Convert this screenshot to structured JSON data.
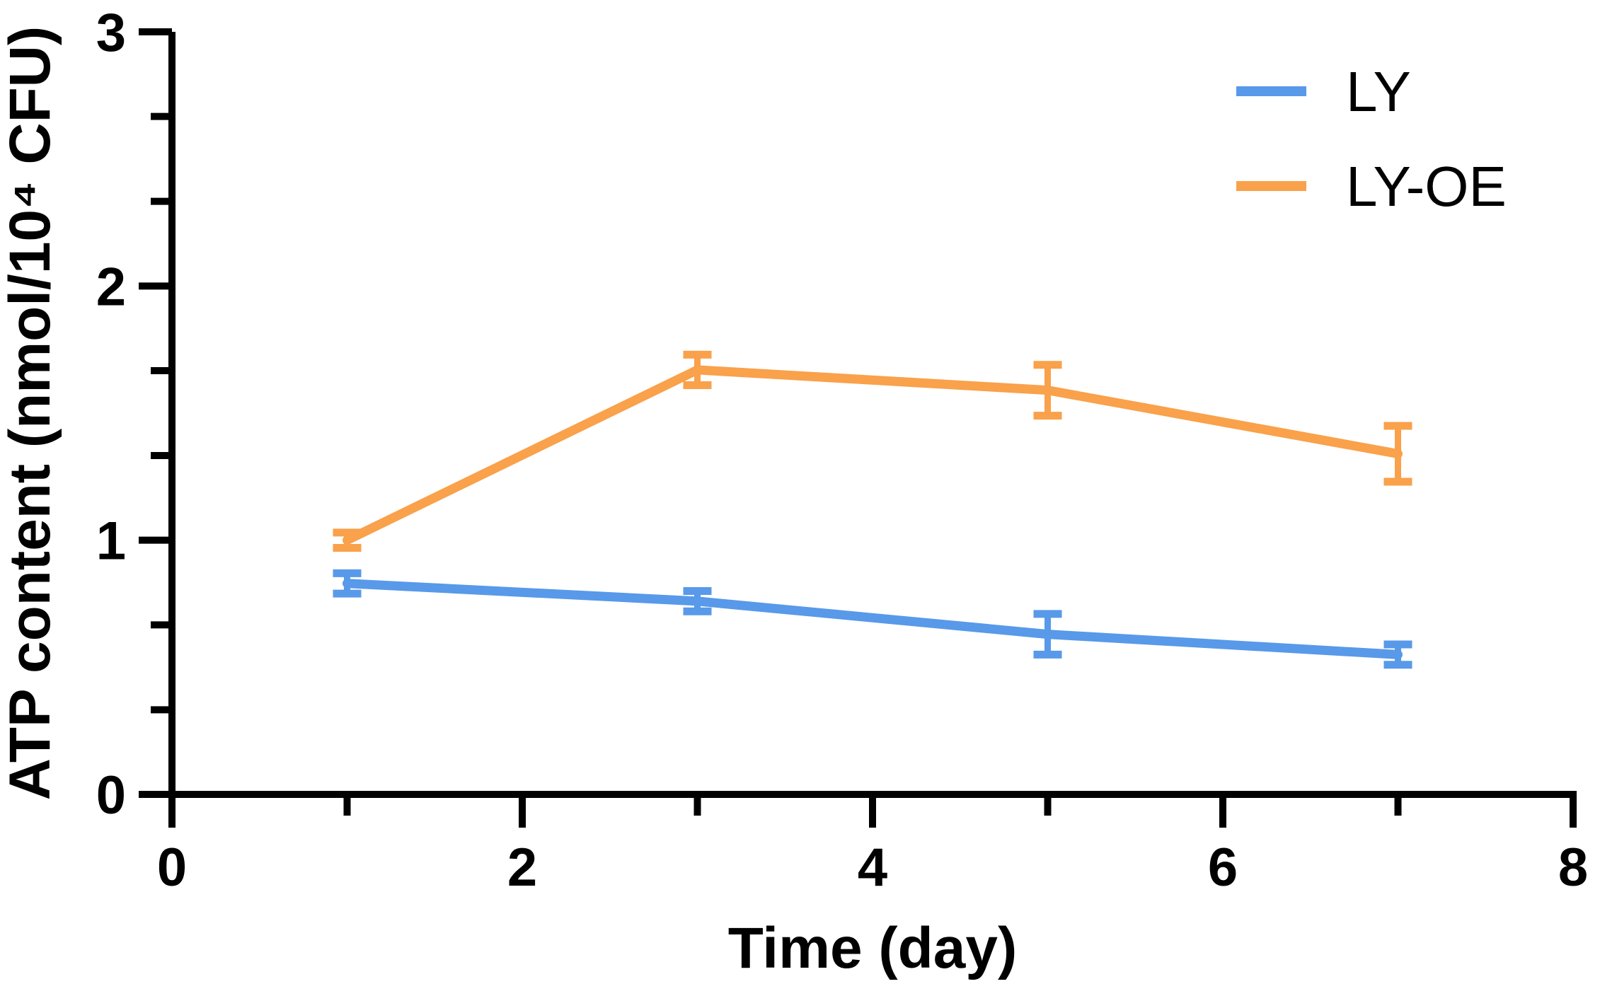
{
  "figure": {
    "background_color": "#ffffff",
    "axis_color": "#000000"
  },
  "chart_data": {
    "type": "line",
    "title": "",
    "xlabel": "Time (day)",
    "ylabel": "ATP content (nmol/10⁴ CFU)",
    "x": [
      1,
      3,
      5,
      7
    ],
    "series": [
      {
        "name": "LY",
        "color": "#5899E9",
        "values": [
          0.83,
          0.76,
          0.63,
          0.55
        ],
        "errors": [
          0.04,
          0.04,
          0.08,
          0.04
        ]
      },
      {
        "name": "LY-OE",
        "color": "#F9A14B",
        "values": [
          1.0,
          1.67,
          1.59,
          1.34
        ],
        "errors": [
          0.03,
          0.06,
          0.1,
          0.11
        ]
      }
    ],
    "xlim": [
      0,
      8
    ],
    "ylim": [
      0,
      3
    ],
    "x_major_ticks": [
      0,
      2,
      4,
      6,
      8
    ],
    "x_tick_labels": [
      "0",
      "2",
      "4",
      "6",
      "8"
    ],
    "x_minor_ticks": [
      1,
      3,
      5,
      7
    ],
    "y_major_ticks": [
      0,
      1,
      2,
      3
    ],
    "y_tick_labels": [
      "0",
      "1",
      "2",
      "3"
    ],
    "y_minor_ticks": [
      0.333,
      0.667,
      1.333,
      1.667,
      2.333,
      2.667
    ],
    "grid": false,
    "legend_position": "top-right",
    "error_bars": "symmetric-with-caps"
  }
}
